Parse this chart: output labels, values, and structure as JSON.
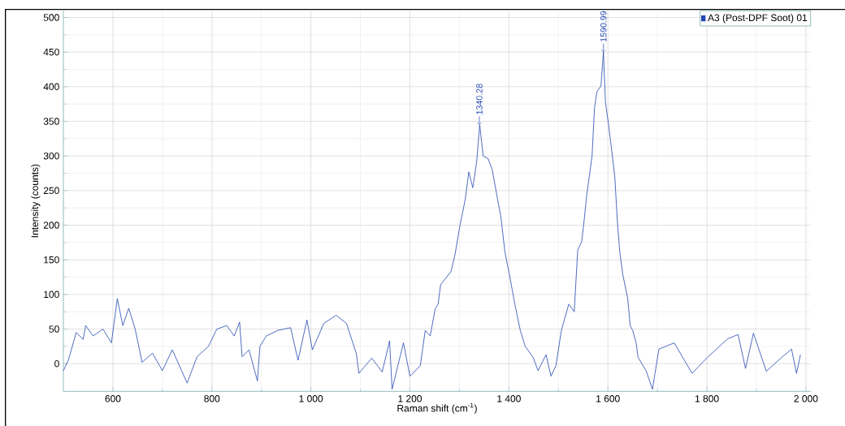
{
  "chart_data": {
    "type": "line",
    "xlabel": "Raman shift (cm$^{-1}$)",
    "ylabel": "Intensity (counts)",
    "x": [
      500,
      510,
      526,
      540,
      545,
      560,
      580,
      597,
      609,
      620,
      632,
      645,
      659,
      680,
      700,
      720,
      750,
      770,
      793,
      810,
      830,
      845,
      856,
      861,
      875,
      892,
      897,
      910,
      933,
      959,
      974,
      992,
      1003,
      1026,
      1051,
      1072,
      1092,
      1097,
      1123,
      1144,
      1159,
      1164,
      1187,
      1200,
      1221,
      1231,
      1236,
      1241,
      1251,
      1257,
      1262,
      1283,
      1291,
      1301,
      1312,
      1319,
      1327,
      1335,
      1341,
      1348,
      1358,
      1366,
      1376,
      1384,
      1392,
      1402,
      1412,
      1423,
      1433,
      1449,
      1459,
      1475,
      1485,
      1495,
      1506,
      1521,
      1532,
      1539,
      1547,
      1552,
      1557,
      1568,
      1573,
      1578,
      1586,
      1591,
      1595,
      1601,
      1609,
      1614,
      1619,
      1624,
      1630,
      1640,
      1645,
      1650,
      1657,
      1661,
      1677,
      1690,
      1703,
      1734,
      1770,
      1801,
      1842,
      1863,
      1878,
      1894,
      1920,
      1951,
      1971,
      1981,
      1989
    ],
    "series": [
      {
        "name": "A3 (Post-DPF Soot) 01",
        "color": "#2347b0",
        "values": [
          -10,
          5,
          45,
          35,
          55,
          40,
          50,
          30,
          94,
          55,
          80,
          50,
          2,
          15,
          -10,
          20,
          -28,
          10,
          25,
          50,
          55,
          40,
          60,
          10,
          20,
          -25,
          25,
          40,
          48,
          52,
          5,
          63,
          20,
          58,
          70,
          58,
          14,
          -14,
          8,
          -12,
          33,
          -37,
          30,
          -18,
          -3,
          48,
          44,
          40,
          79,
          86,
          114,
          133,
          157,
          199,
          238,
          277,
          254,
          292,
          345,
          300,
          296,
          281,
          242,
          211,
          161,
          125,
          86,
          48,
          25,
          9,
          -10,
          13,
          -18,
          -3,
          48,
          86,
          75,
          164,
          176,
          207,
          242,
          300,
          370,
          393,
          401,
          450,
          378,
          347,
          300,
          269,
          207,
          161,
          129,
          94,
          55,
          48,
          30,
          9,
          -10,
          -37,
          21,
          30,
          -14,
          9,
          36,
          42,
          -7,
          44,
          -11,
          9,
          21,
          -14,
          13
        ]
      }
    ],
    "annotations": [
      {
        "text": "1340.28",
        "x": 1340.28,
        "y": 345
      },
      {
        "text": "1590.99",
        "x": 1590.99,
        "y": 450
      }
    ],
    "xlim": [
      500,
      2010
    ],
    "ylim": [
      -40,
      510
    ],
    "xticks": [
      600,
      800,
      {
        "value": 1000,
        "label": "1 000"
      },
      {
        "value": 1200,
        "label": "1 200"
      },
      {
        "value": 1400,
        "label": "1 400"
      },
      {
        "value": 1600,
        "label": "1 600"
      },
      {
        "value": 1800,
        "label": "1 800"
      },
      {
        "value": 2000,
        "label": "2 000"
      }
    ],
    "yticks": [
      0,
      50,
      100,
      150,
      200,
      250,
      300,
      350,
      400,
      450,
      500
    ],
    "grid": true,
    "legend": "top right",
    "marker": "none",
    "line_style": "solid"
  }
}
